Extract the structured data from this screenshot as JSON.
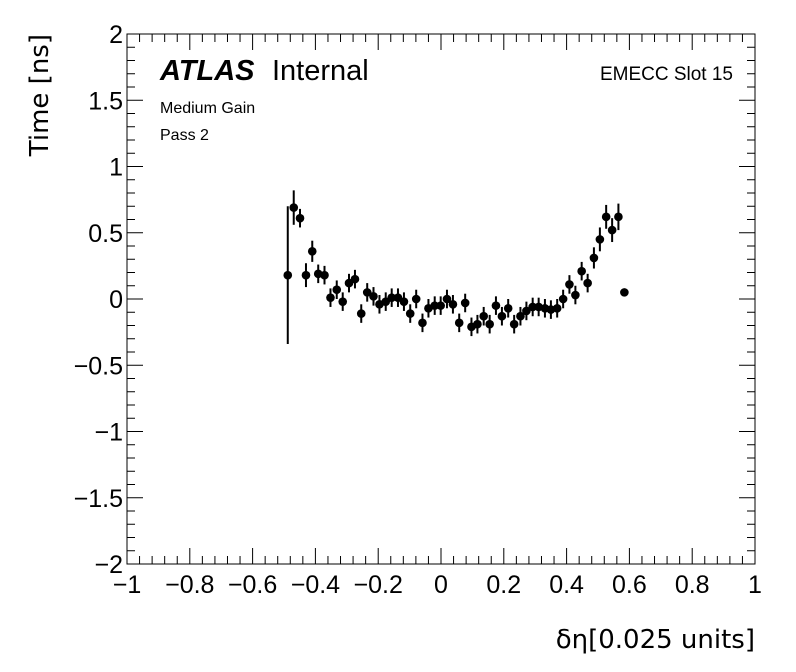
{
  "labels": {
    "atlas": "ATLAS",
    "internal": "Internal",
    "gain": "Medium Gain",
    "pass": "Pass 2",
    "slot": "EMECC Slot 15"
  },
  "chart_data": {
    "type": "scatter",
    "xlabel": "δη[0.025 units]",
    "ylabel": "Time [ns]",
    "xlim": [
      -1,
      1
    ],
    "ylim": [
      -2,
      2
    ],
    "x_ticks": [
      -1,
      -0.8,
      -0.6,
      -0.4,
      -0.2,
      0,
      0.2,
      0.4,
      0.6,
      0.8,
      1
    ],
    "x_tick_labels": [
      "−1",
      "−0.8",
      "−0.6",
      "−0.4",
      "−0.2",
      "0",
      "0.2",
      "0.4",
      "0.6",
      "0.8",
      "1"
    ],
    "y_ticks": [
      -2,
      -1.5,
      -1,
      -0.5,
      0,
      0.5,
      1,
      1.5,
      2
    ],
    "y_tick_labels": [
      "−2",
      "−1.5",
      "−1",
      "−0.5",
      "0",
      "0.5",
      "1",
      "1.5",
      "2"
    ],
    "grid": false,
    "marker_color": "#000000",
    "series": [
      {
        "points": [
          {
            "x": -0.488,
            "y": 0.18,
            "err": 0.52
          },
          {
            "x": -0.469,
            "y": 0.69,
            "err": 0.13
          },
          {
            "x": -0.449,
            "y": 0.61,
            "err": 0.07
          },
          {
            "x": -0.43,
            "y": 0.18,
            "err": 0.09
          },
          {
            "x": -0.41,
            "y": 0.36,
            "err": 0.08
          },
          {
            "x": -0.391,
            "y": 0.19,
            "err": 0.07
          },
          {
            "x": -0.371,
            "y": 0.18,
            "err": 0.07
          },
          {
            "x": -0.352,
            "y": 0.01,
            "err": 0.07
          },
          {
            "x": -0.332,
            "y": 0.07,
            "err": 0.07
          },
          {
            "x": -0.313,
            "y": -0.02,
            "err": 0.07
          },
          {
            "x": -0.293,
            "y": 0.12,
            "err": 0.07
          },
          {
            "x": -0.274,
            "y": 0.15,
            "err": 0.07
          },
          {
            "x": -0.254,
            "y": -0.11,
            "err": 0.07
          },
          {
            "x": -0.235,
            "y": 0.05,
            "err": 0.07
          },
          {
            "x": -0.215,
            "y": 0.02,
            "err": 0.07
          },
          {
            "x": -0.196,
            "y": -0.04,
            "err": 0.07
          },
          {
            "x": -0.176,
            "y": -0.02,
            "err": 0.07
          },
          {
            "x": -0.157,
            "y": 0.01,
            "err": 0.07
          },
          {
            "x": -0.137,
            "y": 0.01,
            "err": 0.07
          },
          {
            "x": -0.118,
            "y": -0.02,
            "err": 0.07
          },
          {
            "x": -0.098,
            "y": -0.11,
            "err": 0.07
          },
          {
            "x": -0.079,
            "y": 0.0,
            "err": 0.07
          },
          {
            "x": -0.059,
            "y": -0.18,
            "err": 0.07
          },
          {
            "x": -0.04,
            "y": -0.07,
            "err": 0.07
          },
          {
            "x": -0.02,
            "y": -0.05,
            "err": 0.07
          },
          {
            "x": -0.001,
            "y": -0.05,
            "err": 0.07
          },
          {
            "x": 0.019,
            "y": 0.0,
            "err": 0.07
          },
          {
            "x": 0.038,
            "y": -0.04,
            "err": 0.07
          },
          {
            "x": 0.058,
            "y": -0.18,
            "err": 0.07
          },
          {
            "x": 0.077,
            "y": -0.03,
            "err": 0.07
          },
          {
            "x": 0.097,
            "y": -0.21,
            "err": 0.07
          },
          {
            "x": 0.116,
            "y": -0.19,
            "err": 0.07
          },
          {
            "x": 0.136,
            "y": -0.13,
            "err": 0.07
          },
          {
            "x": 0.155,
            "y": -0.19,
            "err": 0.07
          },
          {
            "x": 0.175,
            "y": -0.05,
            "err": 0.07
          },
          {
            "x": 0.194,
            "y": -0.13,
            "err": 0.07
          },
          {
            "x": 0.214,
            "y": -0.07,
            "err": 0.07
          },
          {
            "x": 0.233,
            "y": -0.19,
            "err": 0.07
          },
          {
            "x": 0.253,
            "y": -0.13,
            "err": 0.07
          },
          {
            "x": 0.272,
            "y": -0.09,
            "err": 0.07
          },
          {
            "x": 0.292,
            "y": -0.06,
            "err": 0.07
          },
          {
            "x": 0.311,
            "y": -0.06,
            "err": 0.07
          },
          {
            "x": 0.331,
            "y": -0.07,
            "err": 0.07
          },
          {
            "x": 0.35,
            "y": -0.08,
            "err": 0.07
          },
          {
            "x": 0.37,
            "y": -0.07,
            "err": 0.07
          },
          {
            "x": 0.389,
            "y": 0.0,
            "err": 0.07
          },
          {
            "x": 0.409,
            "y": 0.11,
            "err": 0.07
          },
          {
            "x": 0.428,
            "y": 0.03,
            "err": 0.07
          },
          {
            "x": 0.448,
            "y": 0.21,
            "err": 0.07
          },
          {
            "x": 0.467,
            "y": 0.12,
            "err": 0.07
          },
          {
            "x": 0.487,
            "y": 0.31,
            "err": 0.08
          },
          {
            "x": 0.506,
            "y": 0.45,
            "err": 0.09
          },
          {
            "x": 0.526,
            "y": 0.62,
            "err": 0.09
          },
          {
            "x": 0.545,
            "y": 0.52,
            "err": 0.09
          },
          {
            "x": 0.565,
            "y": 0.62,
            "err": 0.1
          },
          {
            "x": 0.584,
            "y": 0.05,
            "err": 0.0
          }
        ]
      }
    ]
  }
}
